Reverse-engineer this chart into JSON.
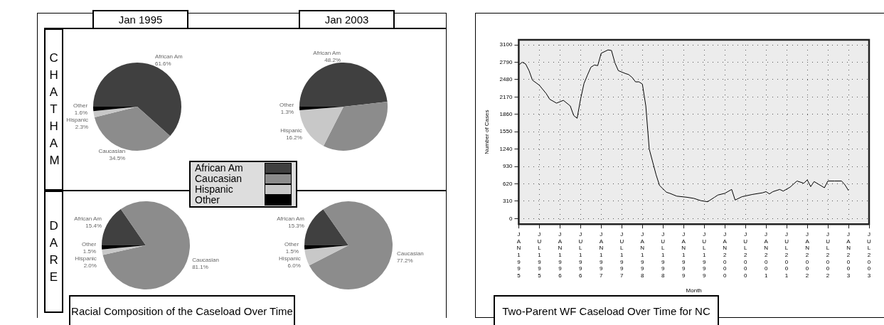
{
  "chart_data": [
    {
      "type": "pie",
      "title": "Jan 1995",
      "annotations": [
        "CHATHAM"
      ],
      "legend": "bottom right",
      "categories": [
        "African Am",
        "Caucasian",
        "Hispanic",
        "Other"
      ],
      "values": [
        61.6,
        34.5,
        2.3,
        1.6
      ],
      "colors": [
        "#404040",
        "#8c8c8c",
        "#c8c8c8",
        "#000000"
      ],
      "value_labels": [
        "61.6%",
        "34.5%",
        "2.3%",
        "1.6%"
      ]
    },
    {
      "type": "pie",
      "title": "Jan 2003",
      "categories": [
        "African Am",
        null,
        "Hispanic",
        "Other"
      ],
      "values": [
        48.2,
        34.3,
        16.2,
        1.3
      ],
      "colors": [
        "#404040",
        "#8c8c8c",
        "#c8c8c8",
        "#000000"
      ],
      "value_labels": [
        "48.2%",
        null,
        "16.2%",
        "1.3%"
      ]
    },
    {
      "type": "pie",
      "annotations": [
        "DARE",
        "Racial Composition of the Caseload Over Time"
      ],
      "categories": [
        "African Am",
        "Caucasian",
        "Hispanic",
        "Other"
      ],
      "values": [
        15.4,
        81.1,
        2.0,
        1.5
      ],
      "colors": [
        "#404040",
        "#8c8c8c",
        "#c8c8c8",
        "#000000"
      ],
      "value_labels": [
        "15.4%",
        "81.1%",
        "2.0%",
        "1.5%"
      ]
    },
    {
      "type": "pie",
      "categories": [
        "African Am",
        "Caucasian",
        "Hispanic",
        "Other"
      ],
      "values": [
        15.3,
        77.2,
        6.0,
        1.5
      ],
      "colors": [
        "#404040",
        "#8c8c8c",
        "#c8c8c8",
        "#000000"
      ],
      "value_labels": [
        "15.3%",
        "77.2%",
        "6.0%",
        "1.5%"
      ]
    },
    {
      "type": "line",
      "title": "Two-Parent WF Caseload Over Time for NC",
      "xlabel": "Month",
      "ylabel": "Number of Cases",
      "grid": true,
      "line_style": "solid",
      "marker": "none",
      "xlim": [
        "1995-01",
        "2003-07"
      ],
      "xticks": [
        {
          "value": "1995-01",
          "label": "JAN1995"
        },
        {
          "value": "1995-07",
          "label": "JUL1995"
        },
        {
          "value": "1996-01",
          "label": "JAN1996"
        },
        {
          "value": "1996-07",
          "label": "JUL1996"
        },
        {
          "value": "1997-01",
          "label": "JAN1997"
        },
        {
          "value": "1997-07",
          "label": "JUL1997"
        },
        {
          "value": "1998-01",
          "label": "JAN1998"
        },
        {
          "value": "1998-07",
          "label": "JUL1998"
        },
        {
          "value": "1999-01",
          "label": "JAN1999"
        },
        {
          "value": "1999-07",
          "label": "JUL1999"
        },
        {
          "value": "2000-01",
          "label": "JAN2000"
        },
        {
          "value": "2000-07",
          "label": "JUL2000"
        },
        {
          "value": "2001-01",
          "label": "JAN2001"
        },
        {
          "value": "2001-07",
          "label": "JUL2001"
        },
        {
          "value": "2002-01",
          "label": "JAN2002"
        },
        {
          "value": "2002-07",
          "label": "JUL2002"
        },
        {
          "value": "2003-01",
          "label": "JAN2003"
        },
        {
          "value": "2003-07",
          "label": "JUL2003"
        }
      ],
      "ylim": [
        -100,
        3190
      ],
      "yticks": [
        0,
        310,
        620,
        930,
        1240,
        1550,
        1860,
        2170,
        2480,
        2790,
        3100
      ],
      "x": [
        "1995-01",
        "1995-02",
        "1995-03",
        "1995-04",
        "1995-05",
        "1995-07",
        "1995-09",
        "1995-10",
        "1995-12",
        "1996-02",
        "1996-03",
        "1996-04",
        "1996-05",
        "1996-06",
        "1996-07",
        "1996-08",
        "1996-09",
        "1996-10",
        "1996-11",
        "1996-12",
        "1997-01",
        "1997-03",
        "1997-04",
        "1997-05",
        "1997-06",
        "1997-08",
        "1997-09",
        "1997-10",
        "1997-11",
        "1997-12",
        "1998-01",
        "1998-02",
        "1998-03",
        "1998-05",
        "1998-06",
        "1998-08",
        "1998-09",
        "1998-11",
        "1999-02",
        "1999-04",
        "1999-06",
        "1999-08",
        "1999-10",
        "1999-11",
        "2000-01",
        "2000-03",
        "2000-04",
        "2000-06",
        "2000-09",
        "2000-12",
        "2001-01",
        "2001-02",
        "2001-03",
        "2001-05",
        "2001-06",
        "2001-08",
        "2001-10",
        "2001-12",
        "2002-01",
        "2002-02",
        "2002-03",
        "2002-06",
        "2002-07",
        "2002-09",
        "2002-11",
        "2002-12",
        "2003-01"
      ],
      "series": [
        {
          "color": "#000000",
          "values": [
            2740,
            2790,
            2760,
            2640,
            2470,
            2380,
            2230,
            2130,
            2060,
            2110,
            2060,
            2010,
            1840,
            1790,
            2130,
            2410,
            2560,
            2700,
            2740,
            2730,
            2950,
            3010,
            3000,
            2780,
            2640,
            2590,
            2570,
            2520,
            2440,
            2440,
            2400,
            2010,
            1240,
            780,
            590,
            470,
            450,
            400,
            380,
            360,
            320,
            300,
            380,
            420,
            450,
            520,
            330,
            390,
            430,
            460,
            480,
            440,
            480,
            520,
            490,
            560,
            670,
            630,
            690,
            570,
            660,
            550,
            670,
            670,
            670,
            600,
            500
          ]
        }
      ]
    }
  ]
}
